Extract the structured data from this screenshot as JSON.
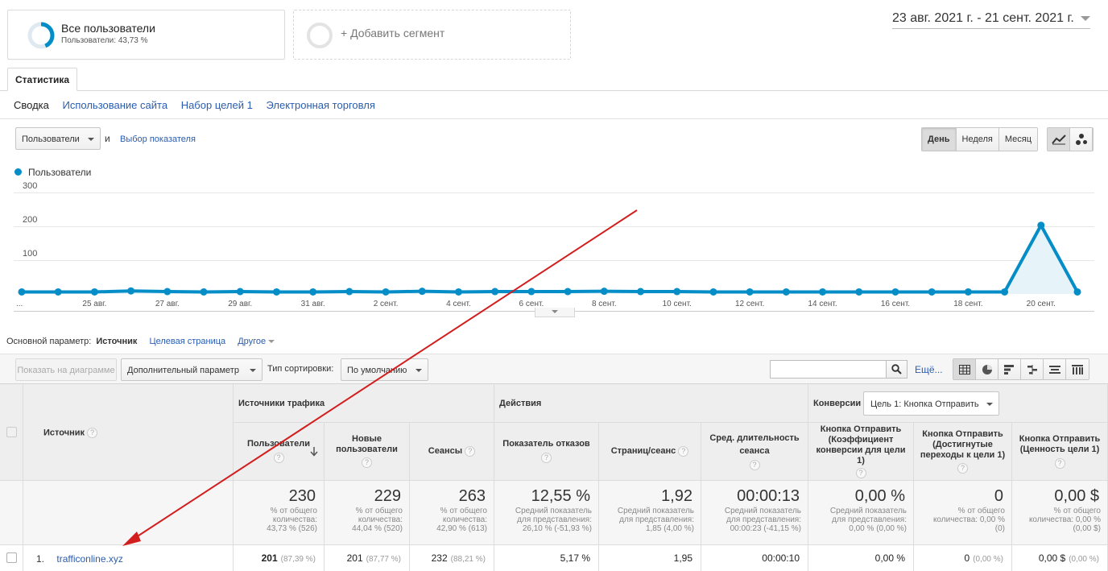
{
  "segments": {
    "all_users": {
      "title": "Все пользователи",
      "subtitle": "Пользователи: 43,73 %",
      "share": 0.4373
    },
    "add_segment_label": "+ Добавить сегмент"
  },
  "date_range": "23 авг. 2021 г. - 21 сент. 2021 г.",
  "tabs": {
    "statistics": "Статистика"
  },
  "subnav": [
    "Сводка",
    "Использование сайта",
    "Набор целей 1",
    "Электронная торговля"
  ],
  "metric_select": "Пользователи",
  "and_label": "и",
  "choose_metric": "Выбор показателя",
  "granularity": {
    "day": "День",
    "week": "Неделя",
    "month": "Месяц",
    "active": "day"
  },
  "chart_view_icons": [
    "line-chart-icon",
    "motion-chart-icon"
  ],
  "legend_label": "Пользователи",
  "chart_data": {
    "type": "area",
    "series": [
      {
        "name": "Пользователи",
        "values": [
          6,
          6,
          6,
          9,
          7,
          6,
          7,
          6,
          6,
          7,
          6,
          8,
          6,
          7,
          7,
          7,
          8,
          7,
          7,
          6,
          6,
          6,
          6,
          6,
          6,
          6,
          6,
          6,
          203,
          6
        ]
      }
    ],
    "yticks": [
      100,
      200,
      300
    ],
    "ylim": [
      0,
      300
    ],
    "xtick_labels": [
      "...",
      "25 авг.",
      "27 авг.",
      "29 авг.",
      "31 авг.",
      "2 сент.",
      "4 сент.",
      "6 сент.",
      "8 сент.",
      "10 сент.",
      "12 сент.",
      "14 сент.",
      "16 сент.",
      "18 сент.",
      "20 сент."
    ],
    "color": "#058dc7",
    "grid": true
  },
  "primary_dimension": {
    "label": "Основной параметр:",
    "current": "Источник",
    "options": [
      "Целевая страница",
      "Другое"
    ]
  },
  "table_controls": {
    "plot_rows": "Показать на диаграмме",
    "secondary_dim": "Дополнительный параметр",
    "sort_label": "Тип сортировки:",
    "sort_value": "По умолчанию",
    "search_value": "",
    "more": "Ещё..."
  },
  "table": {
    "source_header": "Источник",
    "groups": {
      "acquisition": "Источники трафика",
      "behavior": "Действия",
      "conversions": "Конверсии",
      "goal_select": "Цель 1: Кнопка Отправить"
    },
    "columns": [
      "Пользователи",
      "Новые пользователи",
      "Сеансы",
      "Показатель отказов",
      "Страниц/сеанс",
      "Сред. длительность сеанса",
      "Кнопка Отправить (Коэффициент конверсии для цели 1)",
      "Кнопка Отправить (Достигнутые переходы к цели 1)",
      "Кнопка Отправить (Ценность цели 1)"
    ],
    "totals": [
      {
        "value": "230",
        "sub": [
          "% от общего",
          "количества:",
          "43,73 % (526)"
        ]
      },
      {
        "value": "229",
        "sub": [
          "% от общего",
          "количества:",
          "44,04 % (520)"
        ]
      },
      {
        "value": "263",
        "sub": [
          "% от общего",
          "количества:",
          "42,90 % (613)"
        ]
      },
      {
        "value": "12,55 %",
        "sub": [
          "Средний показатель",
          "для представления:",
          "26,10 % (-51,93 %)"
        ]
      },
      {
        "value": "1,92",
        "sub": [
          "Средний показатель",
          "для представления:",
          "1,85 (4,00 %)"
        ]
      },
      {
        "value": "00:00:13",
        "sub": [
          "Средний показатель",
          "для представления:",
          "00:00:23 (-41,15 %)"
        ]
      },
      {
        "value": "0,00 %",
        "sub": [
          "Средний показатель",
          "для представления:",
          "0,00 % (0,00 %)"
        ]
      },
      {
        "value": "0",
        "sub": [
          "% от общего",
          "количества: 0,00 %",
          "(0)"
        ]
      },
      {
        "value": "0,00 $",
        "sub": [
          "% от общего",
          "количества: 0,00 %",
          "(0,00 $)"
        ]
      }
    ],
    "rows": [
      {
        "index": "1.",
        "source": "trafficonline.xyz",
        "values": [
          {
            "v": "201",
            "pct": "(87,39 %)",
            "bold": true
          },
          {
            "v": "201",
            "pct": "(87,77 %)"
          },
          {
            "v": "232",
            "pct": "(88,21 %)"
          },
          {
            "v": "5,17 %",
            "pct": ""
          },
          {
            "v": "1,95",
            "pct": ""
          },
          {
            "v": "00:00:10",
            "pct": ""
          },
          {
            "v": "0,00 %",
            "pct": ""
          },
          {
            "v": "0",
            "pct": "(0,00 %)"
          },
          {
            "v": "0,00 $",
            "pct": "(0,00 %)"
          }
        ]
      }
    ]
  }
}
